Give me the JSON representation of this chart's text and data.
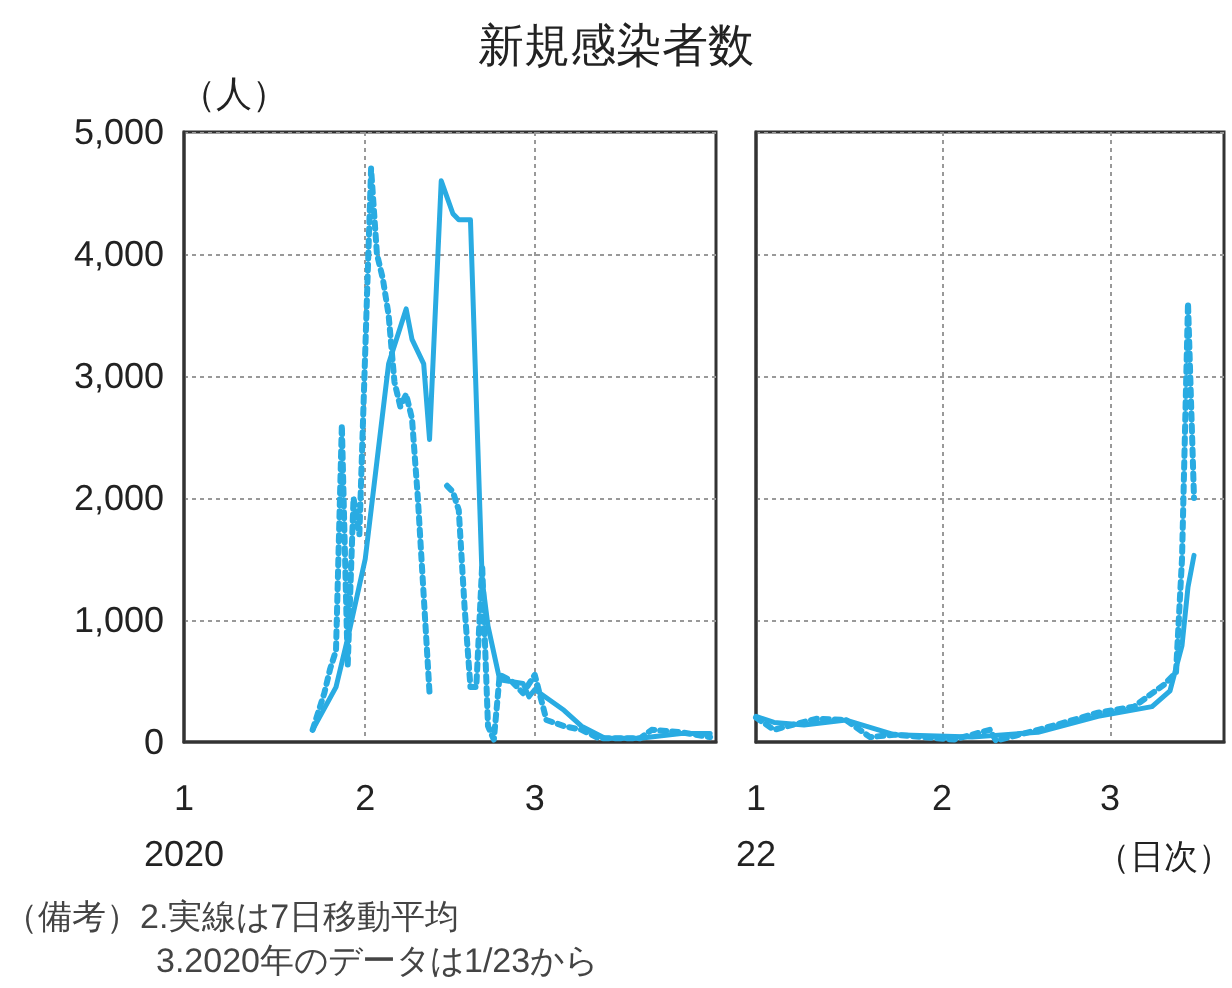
{
  "chart_data": [
    {
      "type": "line",
      "title": "新規感染者数",
      "ylabel": "（人）",
      "annotations": [
        "（備考）2.実線は7日移動平均",
        "3.2020年のデータは1/23から"
      ],
      "xlim": [
        "2020-01-01",
        "2020-04-01"
      ],
      "xticks": [
        {
          "value": "2020-01-01",
          "label": "1\n2020"
        },
        {
          "value": "2020-02-01",
          "label": "2"
        },
        {
          "value": "2020-03-01",
          "label": "3"
        }
      ],
      "ylim": [
        0,
        5000
      ],
      "yticks": [
        0,
        {
          "value": 1000,
          "label": "1,000"
        },
        {
          "value": 2000,
          "label": "2,000"
        },
        {
          "value": 3000,
          "label": "3,000"
        },
        {
          "value": 4000,
          "label": "4,000"
        },
        {
          "value": 5000,
          "label": "5,000"
        }
      ],
      "grid": true,
      "marker": "none",
      "series": [
        {
          "color": "#29abe2",
          "line_style": "dotted",
          "x": [
            "2020-01-23",
            "2020-01-24",
            "2020-01-25",
            "2020-01-26",
            "2020-01-27",
            "2020-01-28",
            "2020-01-29",
            "2020-01-30",
            "2020-01-31",
            "2020-02-02",
            "2020-02-03",
            "2020-02-04",
            "2020-02-05",
            "2020-02-06",
            "2020-02-07",
            "2020-02-08",
            "2020-02-09",
            "2020-02-10",
            "2020-02-12",
            "2020-02-13",
            "2020-02-14",
            "2020-02-15",
            "2020-02-16",
            "2020-02-17",
            "2020-02-18",
            "2020-02-19",
            "2020-02-20",
            "2020-02-21",
            "2020-02-22",
            "2020-02-23",
            "2020-02-24",
            "2020-02-26",
            "2020-02-28",
            "2020-03-01",
            "2020-03-03",
            "2020-03-06",
            "2020-03-09",
            "2020-03-12",
            "2020-03-19",
            "2020-03-21",
            "2020-03-26",
            "2020-03-31"
          ],
          "values": [
            100,
            250,
            400,
            600,
            750,
            2600,
            620,
            2000,
            1700,
            4700,
            4000,
            3800,
            3500,
            2950,
            2750,
            2850,
            2650,
            2000,
            400,
            null,
            null,
            2100,
            2050,
            1900,
            1100,
            450,
            450,
            1450,
            130,
            20,
            550,
            500,
            400,
            550,
            180,
            130,
            100,
            30,
            30,
            100,
            80,
            40
          ]
        },
        {
          "color": "#29abe2",
          "line_style": "solid",
          "x": [
            "2020-01-23",
            "2020-01-27",
            "2020-01-29",
            "2020-02-01",
            "2020-02-03",
            "2020-02-05",
            "2020-02-07",
            "2020-02-08",
            "2020-02-09",
            "2020-02-11",
            "2020-02-12",
            "2020-02-14",
            "2020-02-16",
            "2020-02-17",
            "2020-02-19",
            "2020-02-21",
            "2020-02-22",
            "2020-02-24",
            "2020-02-28",
            "2020-02-29",
            "2020-03-01",
            "2020-03-06",
            "2020-03-09",
            "2020-03-13",
            "2020-03-19",
            "2020-03-26",
            "2020-03-31"
          ],
          "values": [
            100,
            450,
            850,
            1500,
            2300,
            3100,
            3400,
            3550,
            3300,
            3100,
            2480,
            4600,
            4330,
            4280,
            4280,
            1330,
            950,
            510,
            480,
            370,
            430,
            260,
            130,
            30,
            30,
            70,
            70
          ]
        }
      ]
    },
    {
      "type": "line",
      "xlabel": "（日次）",
      "tick_labels": "x",
      "xlim": [
        "2022-01-01",
        "2022-03-20"
      ],
      "xticks": [
        {
          "value": "2022-01-01",
          "label": "1\n22"
        },
        {
          "value": "2022-02-01",
          "label": "2"
        },
        {
          "value": "2022-03-01",
          "label": "3"
        }
      ],
      "ylim": [
        0,
        5000
      ],
      "yticks": [
        0,
        1000,
        2000,
        3000,
        4000,
        5000
      ],
      "grid": true,
      "marker": "none",
      "series": [
        {
          "color": "#29abe2",
          "line_style": "dotted",
          "x": [
            "2022-01-01",
            "2022-01-04",
            "2022-01-11",
            "2022-01-16",
            "2022-01-20",
            "2022-01-24",
            "2022-02-03",
            "2022-02-09",
            "2022-02-10",
            "2022-02-17",
            "2022-02-20",
            "2022-02-27",
            "2022-03-05",
            "2022-03-10",
            "2022-03-12",
            "2022-03-13",
            "2022-03-14",
            "2022-03-15"
          ],
          "values": [
            200,
            100,
            190,
            180,
            40,
            60,
            20,
            100,
            10,
            100,
            140,
            240,
            290,
            470,
            570,
            1500,
            3600,
            2000
          ]
        },
        {
          "color": "#29abe2",
          "line_style": "solid",
          "x": [
            "2022-01-01",
            "2022-01-04",
            "2022-01-09",
            "2022-01-16",
            "2022-01-24",
            "2022-02-06",
            "2022-02-17",
            "2022-02-27",
            "2022-03-08",
            "2022-03-11",
            "2022-03-13",
            "2022-03-14",
            "2022-03-15"
          ],
          "values": [
            210,
            160,
            140,
            180,
            60,
            40,
            80,
            210,
            290,
            420,
            790,
            1270,
            1530
          ]
        }
      ]
    }
  ]
}
